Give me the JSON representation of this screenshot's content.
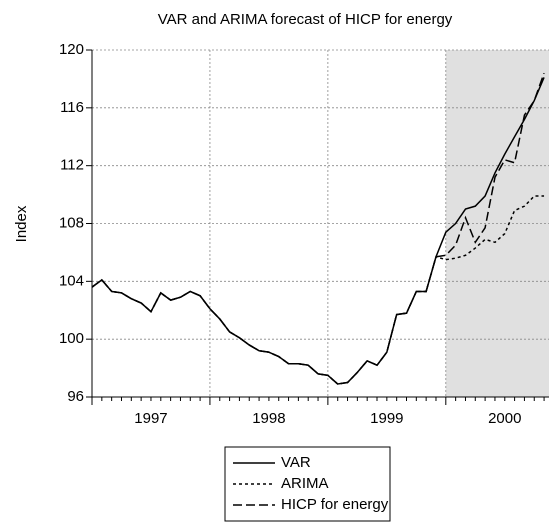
{
  "chart_data": {
    "type": "line",
    "title": "VAR and ARIMA forecast of HICP for energy",
    "y_label": "Index",
    "x": [
      1997.0,
      1997.083,
      1997.167,
      1997.25,
      1997.333,
      1997.417,
      1997.5,
      1997.583,
      1997.667,
      1997.75,
      1997.833,
      1997.917,
      1998.0,
      1998.083,
      1998.167,
      1998.25,
      1998.333,
      1998.417,
      1998.5,
      1998.583,
      1998.667,
      1998.75,
      1998.833,
      1998.917,
      1999.0,
      1999.083,
      1999.167,
      1999.25,
      1999.333,
      1999.417,
      1999.5,
      1999.583,
      1999.667,
      1999.75,
      1999.833,
      1999.917,
      2000.0,
      2000.083,
      2000.167,
      2000.25,
      2000.333,
      2000.417,
      2000.5,
      2000.583,
      2000.667,
      2000.75,
      2000.833
    ],
    "series": [
      {
        "name": "VAR",
        "color": "#000000",
        "dash": "solid",
        "values": [
          103.6,
          104.1,
          103.3,
          103.2,
          102.8,
          102.5,
          101.9,
          103.2,
          102.7,
          102.9,
          103.3,
          103.0,
          102.1,
          101.4,
          100.5,
          100.1,
          99.6,
          99.2,
          99.1,
          98.8,
          98.3,
          98.3,
          98.2,
          97.6,
          97.5,
          96.9,
          97.0,
          97.7,
          98.5,
          98.2,
          99.1,
          101.7,
          101.8,
          103.3,
          103.3,
          105.7,
          107.4,
          108.0,
          109.0,
          109.2,
          109.9,
          111.5,
          112.8,
          114.0,
          115.2,
          116.5,
          118.1
        ]
      },
      {
        "name": "ARIMA",
        "color": "#000000",
        "dash": "short",
        "values": [
          103.6,
          104.1,
          103.3,
          103.2,
          102.8,
          102.5,
          101.9,
          103.2,
          102.7,
          102.9,
          103.3,
          103.0,
          102.1,
          101.4,
          100.5,
          100.1,
          99.6,
          99.2,
          99.1,
          98.8,
          98.3,
          98.3,
          98.2,
          97.6,
          97.5,
          96.9,
          97.0,
          97.7,
          98.5,
          98.2,
          99.1,
          101.7,
          101.8,
          103.3,
          103.3,
          105.7,
          105.5,
          105.6,
          105.8,
          106.3,
          106.9,
          106.7,
          107.3,
          108.9,
          109.2,
          109.9,
          109.9
        ]
      },
      {
        "name": "HICP for energy",
        "color": "#000000",
        "dash": "long",
        "values": [
          103.6,
          104.1,
          103.3,
          103.2,
          102.8,
          102.5,
          101.9,
          103.2,
          102.7,
          102.9,
          103.3,
          103.0,
          102.1,
          101.4,
          100.5,
          100.1,
          99.6,
          99.2,
          99.1,
          98.8,
          98.3,
          98.3,
          98.2,
          97.6,
          97.5,
          96.9,
          97.0,
          97.7,
          98.5,
          98.2,
          99.1,
          101.7,
          101.8,
          103.3,
          103.3,
          105.7,
          105.8,
          106.5,
          108.4,
          106.7,
          107.7,
          111.2,
          112.4,
          112.2,
          115.5,
          116.5,
          118.4
        ]
      }
    ],
    "xlim": [
      1997,
      2000.875
    ],
    "xticks": [
      {
        "value": 1997.5,
        "label": "1997"
      },
      {
        "value": 1998.5,
        "label": "1998"
      },
      {
        "value": 1999.5,
        "label": "1999"
      },
      {
        "value": 2000.5,
        "label": "2000"
      }
    ],
    "ylim": [
      96,
      120
    ],
    "yticks": [
      96,
      100,
      104,
      108,
      112,
      116,
      120
    ],
    "shaded_region": [
      2000,
      2000.875
    ],
    "grid": true,
    "legend": "bottom"
  }
}
